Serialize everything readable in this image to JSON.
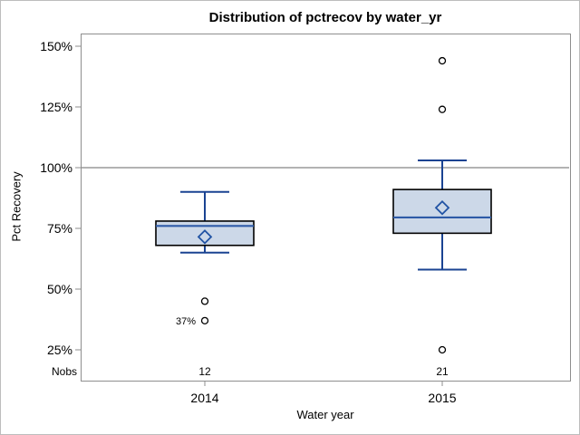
{
  "chart_data": {
    "type": "boxplot",
    "title": "Distribution of pctrecov by water_yr",
    "xlabel": "Water year",
    "ylabel": "Pct Recovery",
    "y_axis": {
      "tick_values": [
        25,
        50,
        75,
        100,
        125,
        150
      ],
      "tick_labels": [
        "25%",
        "50%",
        "75%",
        "100%",
        "125%",
        "150%"
      ],
      "ylim": [
        12,
        155
      ],
      "grid": false
    },
    "reference_line_y": 100,
    "categories": [
      "2014",
      "2015"
    ],
    "nobs_row": {
      "label": "Nobs",
      "values": [
        "12",
        "21"
      ]
    },
    "series": [
      {
        "category": "2014",
        "nobs": 12,
        "whisker_low": 65,
        "q1": 68,
        "median": 76,
        "mean": 71.5,
        "q3": 78,
        "whisker_high": 90,
        "outliers": [
          {
            "value": 45
          },
          {
            "value": 37,
            "label": "37%"
          }
        ]
      },
      {
        "category": "2015",
        "nobs": 21,
        "whisker_low": 58,
        "q1": 73,
        "median": 79.5,
        "mean": 83.5,
        "q3": 91,
        "whisker_high": 103,
        "outliers": [
          {
            "value": 144
          },
          {
            "value": 124
          },
          {
            "value": 25
          }
        ]
      }
    ],
    "colors": {
      "box_fill": "#ccd8e8",
      "box_border": "#000000",
      "median_line": "#2e5ba7",
      "whisker": "#1a4392",
      "mean_marker": "#2153a4",
      "outlier_marker": "#000000",
      "reference_line": "#9a9a9a",
      "plot_frame": "#8e8e8e",
      "text": "#000000"
    }
  }
}
